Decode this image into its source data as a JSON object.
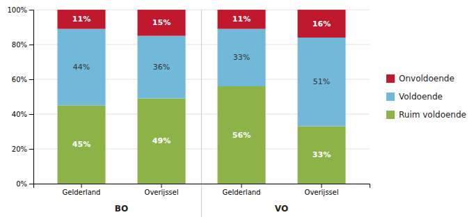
{
  "chart_data": {
    "type": "bar",
    "stacked": true,
    "categories": [
      "Gelderland",
      "Overijssel",
      "Gelderland",
      "Overijssel"
    ],
    "annotations": [
      {
        "text": "BO"
      },
      {
        "text": "VO"
      }
    ],
    "series": [
      {
        "name": "Ruim voldoende",
        "color": "#8db248",
        "values": [
          45,
          49,
          56,
          33
        ],
        "value_labels": [
          "45%",
          "49%",
          "56%",
          "33%"
        ]
      },
      {
        "name": "Voldoende",
        "color": "#72b8d8",
        "values": [
          44,
          36,
          33,
          51
        ],
        "value_labels": [
          "44%",
          "36%",
          "33%",
          "51%"
        ]
      },
      {
        "name": "Onvoldoende",
        "color": "#c0182c",
        "values": [
          11,
          15,
          11,
          16
        ],
        "value_labels": [
          "11%",
          "15%",
          "11%",
          "16%"
        ]
      }
    ],
    "ylim": [
      0,
      100
    ],
    "yticks": [
      {
        "value": 0,
        "label": "0%"
      },
      {
        "value": 20,
        "label": "20%"
      },
      {
        "value": 40,
        "label": "40%"
      },
      {
        "value": 60,
        "label": "60%"
      },
      {
        "value": 80,
        "label": "80%"
      },
      {
        "value": 100,
        "label": "100%"
      }
    ],
    "grid": true,
    "data_labels": true,
    "legend": "right"
  }
}
